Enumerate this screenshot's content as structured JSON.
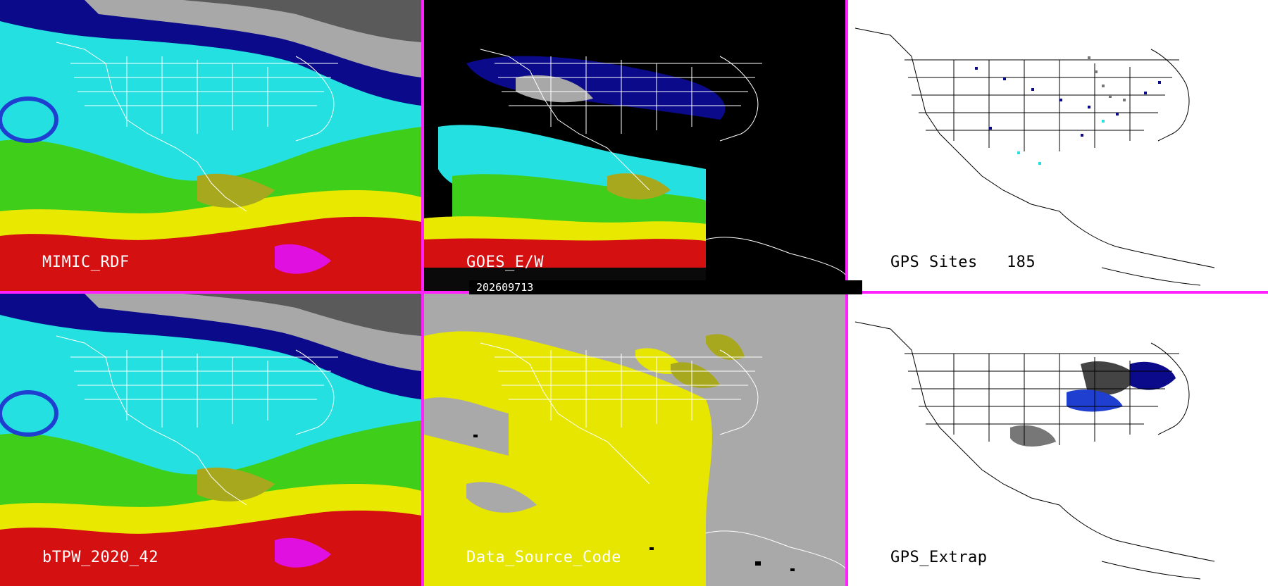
{
  "panels": [
    {
      "label": "MIMIC_RDF",
      "style": "tpw"
    },
    {
      "label": "GOES_E/W",
      "style": "goes"
    },
    {
      "label": "GPS Sites   185",
      "style": "gps-sites"
    },
    {
      "label": "bTPW_2020_42",
      "style": "tpw"
    },
    {
      "label": "Data_Source_Code",
      "style": "source"
    },
    {
      "label": "GPS_Extrap",
      "style": "gps-extrap"
    }
  ],
  "timestamp": "202609713",
  "colors": {
    "divider": "#ff22ff",
    "tpw_scale": [
      "#ffffff",
      "#a8a8a8",
      "#0a0a8a",
      "#1f3fd0",
      "#24e0e0",
      "#3fcf1a",
      "#a8a81f",
      "#e8e800",
      "#d41010",
      "#e010e0"
    ],
    "source_yellow": "#e6e600",
    "source_gray": "#a9a9a9"
  }
}
